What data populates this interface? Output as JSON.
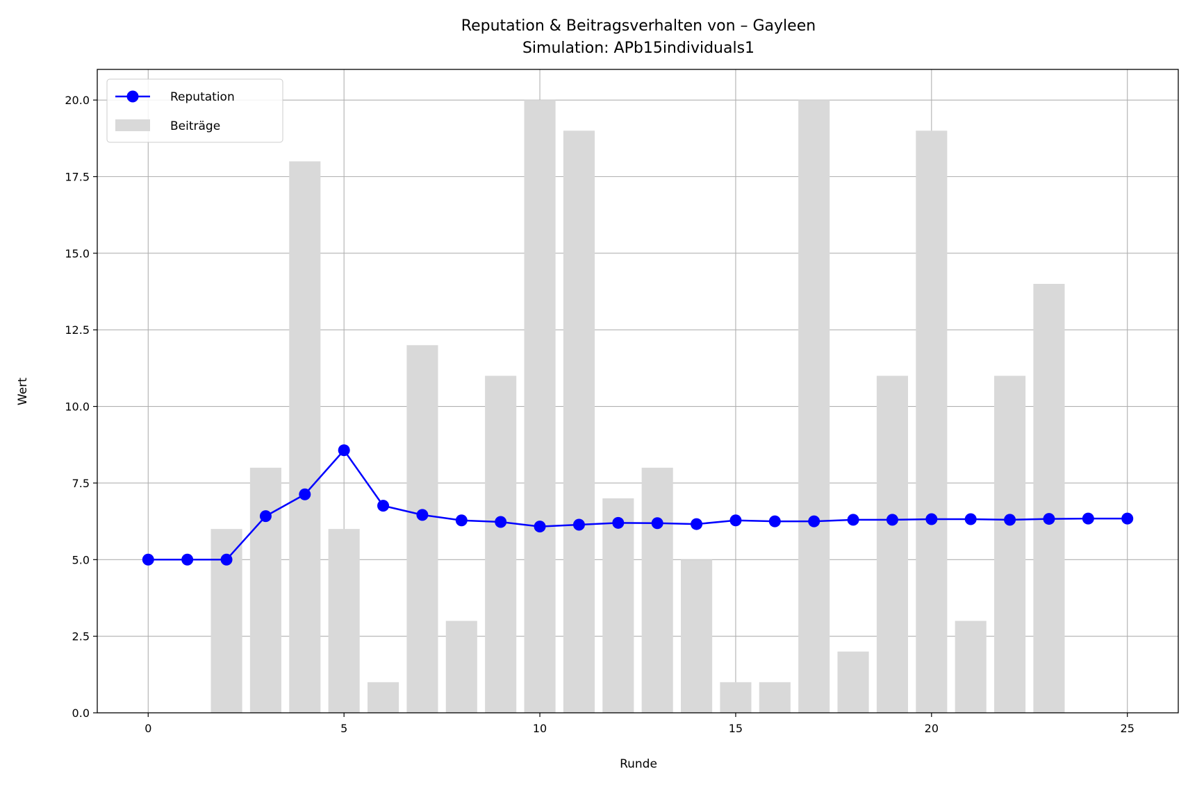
{
  "chart_data": {
    "type": "bar+line",
    "title": "Reputation & Beitragsverhalten von – Gayleen",
    "subtitle": "Simulation: APb15individuals1",
    "xlabel": "Runde",
    "ylabel": "Wert",
    "xlim": [
      -1.3,
      26.3
    ],
    "ylim": [
      0,
      21
    ],
    "xticks": [
      0,
      5,
      10,
      15,
      20,
      25
    ],
    "yticks": [
      0,
      2.5,
      5,
      7.5,
      10,
      12.5,
      15,
      17.5,
      20
    ],
    "ytick_labels": [
      "0.0",
      "2.5",
      "5.0",
      "7.5",
      "10.0",
      "12.5",
      "15.0",
      "17.5",
      "20.0"
    ],
    "grid": true,
    "legend_position": "top-left",
    "series": [
      {
        "name": "Reputation",
        "kind": "line",
        "color": "#0000ff",
        "x": [
          0,
          1,
          2,
          3,
          4,
          5,
          6,
          7,
          8,
          9,
          10,
          11,
          12,
          13,
          14,
          15,
          16,
          17,
          18,
          19,
          20,
          21,
          22,
          23,
          24,
          25
        ],
        "values": [
          5.0,
          5.0,
          5.0,
          6.42,
          7.13,
          8.57,
          6.76,
          6.46,
          6.28,
          6.23,
          6.08,
          6.14,
          6.2,
          6.19,
          6.16,
          6.28,
          6.25,
          6.25,
          6.3,
          6.3,
          6.32,
          6.32,
          6.3,
          6.33,
          6.34,
          6.34
        ]
      },
      {
        "name": "Beiträge",
        "kind": "bar",
        "color": "#d9d9d9",
        "x": [
          2,
          3,
          4,
          5,
          6,
          7,
          8,
          9,
          10,
          11,
          12,
          13,
          14,
          15,
          16,
          17,
          18,
          19,
          20,
          21,
          22,
          23
        ],
        "values": [
          6,
          8,
          18,
          6,
          1,
          12,
          3,
          11,
          20,
          19,
          7,
          8,
          5,
          1,
          1,
          20,
          2,
          11,
          19,
          3,
          11,
          14
        ]
      }
    ]
  }
}
